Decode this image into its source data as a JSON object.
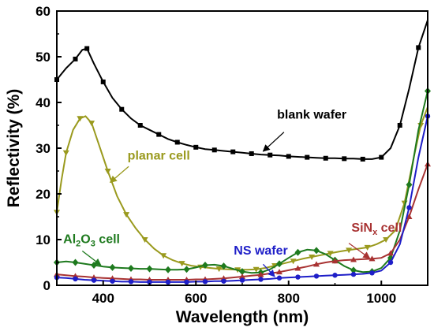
{
  "chart_data": {
    "type": "line",
    "title": "",
    "xlabel": "Wavelength (nm)",
    "ylabel": "Reflectivity (%)",
    "xlim": [
      300,
      1100
    ],
    "ylim": [
      0,
      60
    ],
    "xticks": [
      400,
      600,
      800,
      1000
    ],
    "yticks": [
      0,
      10,
      20,
      30,
      40,
      50,
      60
    ],
    "grid": false,
    "legend": "none",
    "series": [
      {
        "name": "blank wafer",
        "color": "#000000",
        "marker": "square",
        "points": [
          [
            300,
            45
          ],
          [
            320,
            47.5
          ],
          [
            340,
            49.5
          ],
          [
            355,
            51.5
          ],
          [
            365,
            51.8
          ],
          [
            380,
            48.5
          ],
          [
            400,
            44.5
          ],
          [
            420,
            41
          ],
          [
            440,
            38.5
          ],
          [
            460,
            36.5
          ],
          [
            480,
            35
          ],
          [
            500,
            34
          ],
          [
            520,
            33
          ],
          [
            540,
            32
          ],
          [
            560,
            31.3
          ],
          [
            580,
            30.7
          ],
          [
            600,
            30.2
          ],
          [
            620,
            29.8
          ],
          [
            640,
            29.6
          ],
          [
            660,
            29.4
          ],
          [
            680,
            29.2
          ],
          [
            700,
            29
          ],
          [
            720,
            28.8
          ],
          [
            740,
            28.6
          ],
          [
            760,
            28.5
          ],
          [
            780,
            28.4
          ],
          [
            800,
            28.2
          ],
          [
            820,
            28.1
          ],
          [
            840,
            28
          ],
          [
            860,
            27.9
          ],
          [
            880,
            27.8
          ],
          [
            900,
            27.8
          ],
          [
            920,
            27.7
          ],
          [
            940,
            27.7
          ],
          [
            960,
            27.6
          ],
          [
            980,
            27.6
          ],
          [
            1000,
            28
          ],
          [
            1020,
            30
          ],
          [
            1040,
            35
          ],
          [
            1060,
            43
          ],
          [
            1080,
            52
          ],
          [
            1100,
            58
          ]
        ],
        "marker_every": 2
      },
      {
        "name": "planar cell",
        "color": "#9a9a1e",
        "marker": "triangle-down",
        "points": [
          [
            300,
            16
          ],
          [
            310,
            23
          ],
          [
            320,
            29
          ],
          [
            335,
            34
          ],
          [
            350,
            36.5
          ],
          [
            362,
            37
          ],
          [
            375,
            35.5
          ],
          [
            390,
            31
          ],
          [
            410,
            25
          ],
          [
            430,
            19.5
          ],
          [
            450,
            15.5
          ],
          [
            470,
            12.5
          ],
          [
            490,
            10
          ],
          [
            510,
            8
          ],
          [
            530,
            6.5
          ],
          [
            550,
            5.5
          ],
          [
            570,
            4.8
          ],
          [
            590,
            4.3
          ],
          [
            610,
            4
          ],
          [
            630,
            3.8
          ],
          [
            650,
            3.6
          ],
          [
            670,
            3.5
          ],
          [
            690,
            3.4
          ],
          [
            710,
            3.4
          ],
          [
            730,
            3.5
          ],
          [
            750,
            3.8
          ],
          [
            770,
            4.3
          ],
          [
            790,
            4.8
          ],
          [
            810,
            5.3
          ],
          [
            830,
            5.8
          ],
          [
            850,
            6.2
          ],
          [
            870,
            6.6
          ],
          [
            890,
            7
          ],
          [
            910,
            7.4
          ],
          [
            930,
            7.7
          ],
          [
            950,
            8
          ],
          [
            970,
            8.3
          ],
          [
            990,
            9
          ],
          [
            1010,
            10
          ],
          [
            1030,
            12
          ],
          [
            1050,
            18
          ],
          [
            1070,
            28
          ],
          [
            1085,
            35
          ],
          [
            1100,
            39
          ]
        ],
        "marker_every": 2
      },
      {
        "name": "Al2O3 cell",
        "color": "#1e7a1e",
        "marker": "diamond",
        "points": [
          [
            300,
            5
          ],
          [
            320,
            5.2
          ],
          [
            340,
            5
          ],
          [
            360,
            4.7
          ],
          [
            380,
            4.4
          ],
          [
            400,
            4.1
          ],
          [
            420,
            3.9
          ],
          [
            440,
            3.8
          ],
          [
            460,
            3.7
          ],
          [
            480,
            3.6
          ],
          [
            500,
            3.6
          ],
          [
            520,
            3.5
          ],
          [
            540,
            3.4
          ],
          [
            560,
            3.4
          ],
          [
            580,
            3.5
          ],
          [
            600,
            3.9
          ],
          [
            620,
            4.4
          ],
          [
            640,
            4.5
          ],
          [
            660,
            4.2
          ],
          [
            680,
            3.6
          ],
          [
            700,
            3
          ],
          [
            720,
            2.7
          ],
          [
            740,
            2.8
          ],
          [
            760,
            3.5
          ],
          [
            780,
            4.7
          ],
          [
            800,
            6
          ],
          [
            820,
            7.2
          ],
          [
            840,
            7.8
          ],
          [
            860,
            7.6
          ],
          [
            880,
            6.8
          ],
          [
            900,
            5.5
          ],
          [
            920,
            4.2
          ],
          [
            940,
            3.3
          ],
          [
            960,
            2.9
          ],
          [
            980,
            3
          ],
          [
            1000,
            3.8
          ],
          [
            1020,
            6
          ],
          [
            1040,
            12
          ],
          [
            1060,
            22
          ],
          [
            1080,
            34
          ],
          [
            1100,
            42.5
          ]
        ],
        "marker_every": 2
      },
      {
        "name": "SiNx cell",
        "color": "#a83232",
        "marker": "triangle-up",
        "points": [
          [
            300,
            2.4
          ],
          [
            320,
            2.2
          ],
          [
            340,
            2
          ],
          [
            360,
            1.9
          ],
          [
            380,
            1.7
          ],
          [
            400,
            1.6
          ],
          [
            420,
            1.5
          ],
          [
            440,
            1.4
          ],
          [
            460,
            1.3
          ],
          [
            480,
            1.3
          ],
          [
            500,
            1.2
          ],
          [
            520,
            1.2
          ],
          [
            540,
            1.2
          ],
          [
            560,
            1.2
          ],
          [
            580,
            1.2
          ],
          [
            600,
            1.3
          ],
          [
            620,
            1.3
          ],
          [
            640,
            1.4
          ],
          [
            660,
            1.5
          ],
          [
            680,
            1.7
          ],
          [
            700,
            1.9
          ],
          [
            720,
            2.1
          ],
          [
            740,
            2.3
          ],
          [
            760,
            2.6
          ],
          [
            780,
            2.9
          ],
          [
            800,
            3.3
          ],
          [
            820,
            3.7
          ],
          [
            840,
            4.1
          ],
          [
            860,
            4.6
          ],
          [
            880,
            5
          ],
          [
            900,
            5.3
          ],
          [
            920,
            5.5
          ],
          [
            940,
            5.6
          ],
          [
            960,
            5.7
          ],
          [
            980,
            5.8
          ],
          [
            1000,
            6
          ],
          [
            1020,
            7
          ],
          [
            1040,
            10
          ],
          [
            1060,
            15
          ],
          [
            1080,
            21
          ],
          [
            1100,
            26.5
          ]
        ],
        "marker_every": 2
      },
      {
        "name": "NS wafer",
        "color": "#1e1ec8",
        "marker": "circle",
        "points": [
          [
            300,
            1.7
          ],
          [
            320,
            1.6
          ],
          [
            340,
            1.4
          ],
          [
            360,
            1.2
          ],
          [
            380,
            1.1
          ],
          [
            400,
            1
          ],
          [
            420,
            0.9
          ],
          [
            440,
            0.8
          ],
          [
            460,
            0.8
          ],
          [
            480,
            0.7
          ],
          [
            500,
            0.7
          ],
          [
            520,
            0.7
          ],
          [
            540,
            0.7
          ],
          [
            560,
            0.7
          ],
          [
            580,
            0.7
          ],
          [
            600,
            0.8
          ],
          [
            620,
            0.8
          ],
          [
            640,
            0.9
          ],
          [
            660,
            0.9
          ],
          [
            680,
            1
          ],
          [
            700,
            1.1
          ],
          [
            720,
            1.2
          ],
          [
            740,
            1.3
          ],
          [
            760,
            1.4
          ],
          [
            780,
            1.6
          ],
          [
            800,
            1.7
          ],
          [
            820,
            1.8
          ],
          [
            840,
            1.9
          ],
          [
            860,
            2
          ],
          [
            880,
            2.1
          ],
          [
            900,
            2.2
          ],
          [
            920,
            2.3
          ],
          [
            940,
            2.4
          ],
          [
            960,
            2.5
          ],
          [
            980,
            2.7
          ],
          [
            1000,
            3.2
          ],
          [
            1020,
            5
          ],
          [
            1040,
            9
          ],
          [
            1060,
            17
          ],
          [
            1080,
            28
          ],
          [
            1100,
            37
          ]
        ],
        "marker_every": 2
      }
    ],
    "annotations": [
      {
        "text": "blank wafer",
        "color": "#000000",
        "text_at": [
          850,
          36.5
        ],
        "arrow_from": [
          790,
          33.5
        ],
        "arrow_to": [
          745,
          29.3
        ]
      },
      {
        "text": "planar cell",
        "color": "#9a9a1e",
        "text_at": [
          520,
          27.5
        ],
        "arrow_from": [
          455,
          26
        ],
        "arrow_to": [
          415,
          22.5
        ]
      },
      {
        "text": "NS wafer",
        "color": "#1e1ec8",
        "text_at": [
          740,
          6.7
        ],
        "arrow_from": [
          745,
          4.6
        ],
        "arrow_to": [
          770,
          1.9
        ]
      },
      {
        "text": "SiN",
        "sub": "x",
        "tail": " cell",
        "color": "#a83232",
        "text_at": [
          990,
          11.7
        ],
        "arrow_from": [
          930,
          9.2
        ],
        "arrow_to": [
          975,
          5.9
        ]
      },
      {
        "text": "Al",
        "sub": "2",
        "mid": "O",
        "sub2": "3",
        "tail": " cell",
        "color": "#1e7a1e",
        "text_at": [
          375,
          9.2
        ],
        "arrow_from": [
          355,
          7.5
        ],
        "arrow_to": [
          395,
          4.4
        ]
      }
    ]
  }
}
